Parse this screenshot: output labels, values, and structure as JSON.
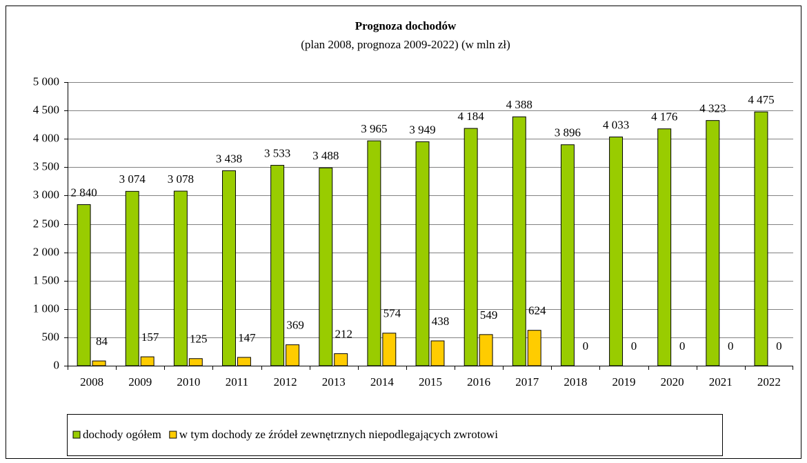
{
  "chart_data": {
    "type": "bar",
    "title": "Prognoza dochodów",
    "subtitle": "(plan 2008, prognoza 2009-2022)  (w mln zł)",
    "categories": [
      "2008",
      "2009",
      "2010",
      "2011",
      "2012",
      "2013",
      "2014",
      "2015",
      "2016",
      "2017",
      "2018",
      "2019",
      "2020",
      "2021",
      "2022"
    ],
    "series": [
      {
        "name": "dochody ogółem",
        "color": "#99cc00",
        "values": [
          2840,
          3074,
          3078,
          3438,
          3533,
          3488,
          3965,
          3949,
          4184,
          4388,
          3896,
          4033,
          4176,
          4323,
          4475
        ],
        "value_labels": [
          "2 840",
          "3 074",
          "3 078",
          "3 438",
          "3 533",
          "3 488",
          "3 965",
          "3 949",
          "4 184",
          "4 388",
          "3 896",
          "4 033",
          "4 176",
          "4 323",
          "4 475"
        ]
      },
      {
        "name": "w tym dochody ze źródeł zewnętrznych niepodlegających zwrotowi",
        "color": "#ffcc00",
        "values": [
          84,
          157,
          125,
          147,
          369,
          212,
          574,
          438,
          549,
          624,
          0,
          0,
          0,
          0,
          0
        ]
      }
    ],
    "ylim": [
      0,
      5000
    ],
    "yticks": [
      0,
      500,
      {
        "value": 1000,
        "label": "1 000"
      },
      {
        "value": 1500,
        "label": "1 500"
      },
      {
        "value": 2000,
        "label": "2 000"
      },
      {
        "value": 2500,
        "label": "2 500"
      },
      {
        "value": 3000,
        "label": "3 000"
      },
      {
        "value": 3500,
        "label": "3 500"
      },
      {
        "value": 4000,
        "label": "4 000"
      },
      {
        "value": 4500,
        "label": "4 500"
      },
      {
        "value": 5000,
        "label": "5 000"
      }
    ],
    "grid": true,
    "legend": "bottom"
  }
}
